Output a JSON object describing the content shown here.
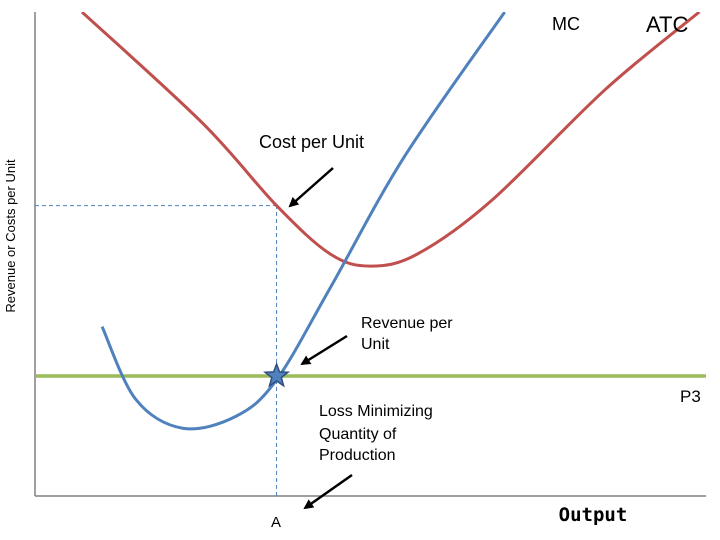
{
  "chart_data": {
    "type": "line",
    "title": "",
    "ylabel": "Revenue or Costs per Unit",
    "xlabel": "Output",
    "x_ticks": [
      "A"
    ],
    "series": [
      {
        "name": "ATC",
        "color": "#c0504d",
        "points": [
          [
            0.07,
            1.0
          ],
          [
            0.25,
            0.77
          ],
          [
            0.36,
            0.6
          ],
          [
            0.44,
            0.5
          ],
          [
            0.5,
            0.475
          ],
          [
            0.57,
            0.5
          ],
          [
            0.68,
            0.61
          ],
          [
            0.85,
            0.84
          ],
          [
            0.99,
            1.0
          ]
        ]
      },
      {
        "name": "MC",
        "color": "#4f81bd",
        "points": [
          [
            0.1,
            0.35
          ],
          [
            0.15,
            0.2
          ],
          [
            0.22,
            0.14
          ],
          [
            0.3,
            0.165
          ],
          [
            0.36,
            0.24
          ],
          [
            0.44,
            0.43
          ],
          [
            0.55,
            0.7
          ],
          [
            0.7,
            1.0
          ]
        ]
      },
      {
        "name": "P3",
        "color": "#9bbb59",
        "points": [
          [
            0.0,
            0.248
          ],
          [
            1.0,
            0.248
          ]
        ]
      }
    ],
    "dashed_guides": [
      {
        "x": 0.36,
        "y_from": 0.0,
        "y_to": 0.6
      },
      {
        "y": 0.6,
        "x_from": 0.0,
        "x_to": 0.36
      }
    ],
    "marker": {
      "shape": "star",
      "x": 0.36,
      "y": 0.248,
      "color": "#4f81bd"
    },
    "annotations": [
      {
        "text_lines": [
          "Cost per Unit"
        ]
      },
      {
        "text_lines": [
          "Revenue per",
          "Unit"
        ]
      },
      {
        "text_lines": [
          "Loss Minimizing",
          "Quantity of",
          "Production"
        ]
      }
    ],
    "curve_labels": {
      "mc": "MC",
      "atc": "ATC",
      "p3": "P3"
    },
    "grid": false,
    "xlim": [
      0,
      1
    ],
    "ylim": [
      0,
      1
    ]
  }
}
